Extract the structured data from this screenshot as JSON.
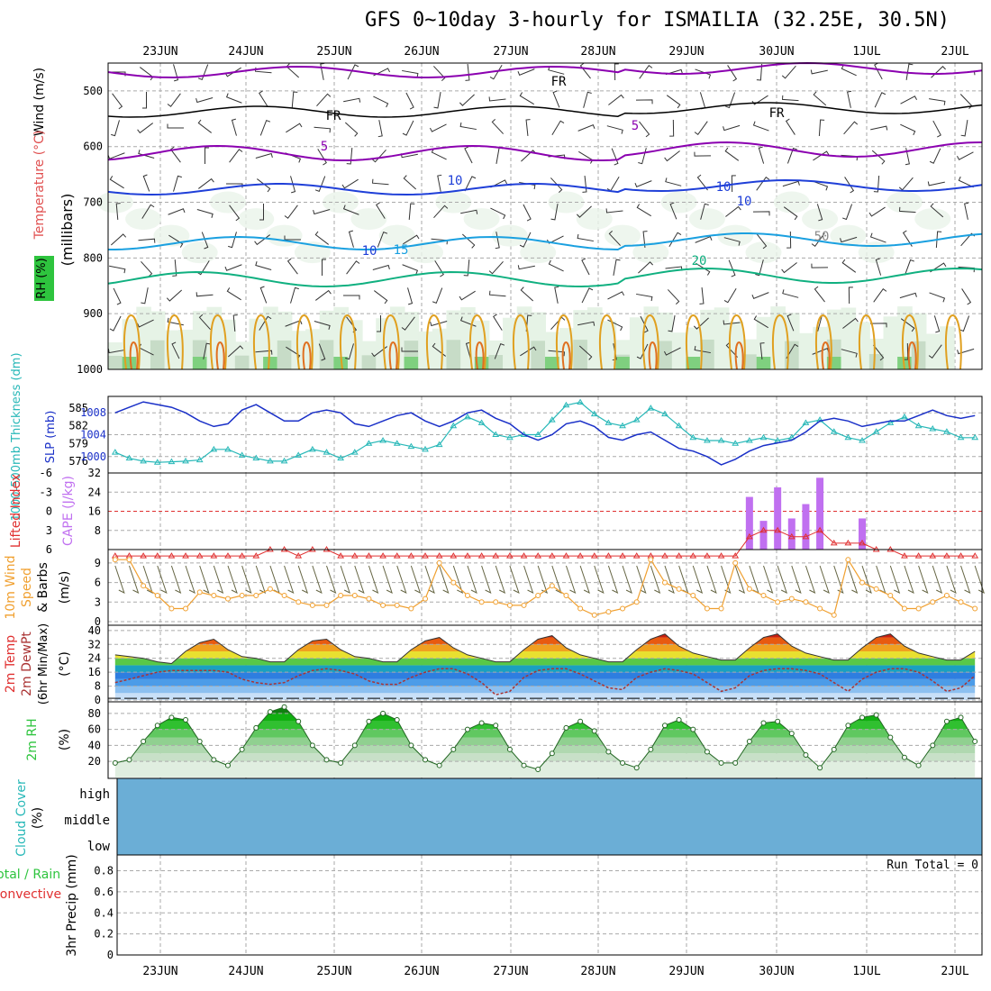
{
  "header": {
    "title": "GFS 0~10day 3-hourly for ISMAILIA (32.25E, 30.5N)"
  },
  "dates": [
    "23JUN",
    "24JUN",
    "25JUN",
    "26JUN",
    "27JUN",
    "28JUN",
    "29JUN",
    "30JUN",
    "1JUL",
    "2JUL"
  ],
  "colors": {
    "purple": "#8b00b0",
    "blue": "#1f3fd8",
    "lightblue": "#1aa0e0",
    "green": "#10b080",
    "orange": "#e0a020",
    "rh": "#2ec43e",
    "cyan": "#28b8b8",
    "slp": "#1a30c8",
    "cape": "#c070f0",
    "li": "#e03030",
    "wind": "#f0a030",
    "cloud": "#6baed6"
  },
  "panels": {
    "upper": {
      "ylabel_wind": "Wind (m/s)",
      "ylabel_temp": "Temperature (°C)",
      "ylabel_mb": "(millibars)",
      "ylabel_rh": "RH (%)",
      "yticks": [
        "500",
        "600",
        "700",
        "800",
        "900",
        "1000"
      ],
      "contour_labels": [
        "FR",
        "FR",
        "FR",
        "5",
        "5",
        "10",
        "10",
        "15",
        "20",
        "10",
        "10",
        "50"
      ]
    },
    "thickness": {
      "ylabel_thick": "1000-500mb Thickness (dm)",
      "ylabel_slp": "SLP (mb)",
      "thick_ticks": [
        "585",
        "582",
        "579",
        "576"
      ],
      "slp_ticks": [
        "1008",
        "1004",
        "1000"
      ]
    },
    "cape": {
      "ylabel_li": "Lifted Index",
      "ylabel_cape": "CAPE (J/kg)",
      "li_ticks": [
        "-6",
        "-3",
        "0",
        "3",
        "6"
      ],
      "cape_ticks": [
        "32",
        "24",
        "16",
        "8"
      ]
    },
    "wind10": {
      "ylabel1": "10m Wind",
      "ylabel2": "Speed",
      "ylabel3": "& Barbs",
      "units": "(m/s)",
      "ticks": [
        "9",
        "6",
        "3",
        "0"
      ]
    },
    "temp2m": {
      "ylabel1": "2m Temp",
      "ylabel2": "2m DewPt",
      "ylabel3": "(6hr Min/Max)",
      "units": "(°C)",
      "ticks": [
        "40",
        "32",
        "24",
        "16",
        "8",
        "0"
      ]
    },
    "rh2m": {
      "ylabel": "2m RH",
      "units": "(%)",
      "ticks": [
        "80",
        "60",
        "40",
        "20"
      ]
    },
    "cloud": {
      "ylabel": "Cloud Cover",
      "units": "(%)",
      "levels": [
        "high",
        "middle",
        "low"
      ]
    },
    "precip": {
      "ylabel_total": "Total / Rain",
      "ylabel_conv": "Convective",
      "ylabel_main": "3hr Precip (mm)",
      "ticks": [
        "0.8",
        "0.6",
        "0.4",
        "0.2",
        "0"
      ],
      "run_total": "Run Total = 0"
    }
  },
  "chart_data": {
    "type": "line",
    "series": [
      {
        "name": "SLP (mb)",
        "values": [
          1008.0,
          1009.0,
          1010.0,
          1009.5,
          1009.0,
          1008.0,
          1006.5,
          1005.5,
          1006.0,
          1008.5,
          1009.5,
          1008.0,
          1006.5,
          1006.5,
          1008.0,
          1008.5,
          1008.0,
          1006.0,
          1005.5,
          1006.5,
          1007.5,
          1008.0,
          1006.5,
          1005.5,
          1006.5,
          1008.0,
          1008.5,
          1007.0,
          1006.0,
          1004.0,
          1003.0,
          1004.0,
          1006.0,
          1006.5,
          1005.5,
          1003.5,
          1003.0,
          1004.0,
          1004.5,
          1003.0,
          1001.5,
          1001.0,
          1000.0,
          998.5,
          999.5,
          1001.0,
          1002.0,
          1002.5,
          1003.0,
          1004.5,
          1006.5,
          1007.0,
          1006.5,
          1005.5,
          1006.0,
          1006.5,
          1006.5,
          1007.5,
          1008.5,
          1007.5,
          1007.0,
          1007.5
        ]
      },
      {
        "name": "1000-500mb Thickness (dm)",
        "values": [
          577.5,
          576.5,
          576.0,
          575.8,
          575.9,
          576.0,
          576.2,
          578.0,
          578.0,
          577.0,
          576.5,
          576.0,
          576.0,
          577.0,
          578.0,
          577.5,
          576.5,
          577.5,
          579.0,
          579.5,
          579.0,
          578.5,
          578.0,
          578.8,
          582.0,
          583.5,
          582.5,
          580.5,
          580.0,
          580.5,
          580.5,
          583.0,
          585.5,
          586.0,
          584.0,
          582.5,
          582.0,
          583.0,
          585.0,
          584.0,
          582.0,
          580.0,
          579.5,
          579.5,
          579.0,
          579.5,
          580.0,
          579.5,
          580.0,
          582.5,
          583.0,
          581.0,
          580.0,
          579.5,
          581.0,
          582.5,
          583.5,
          582.0,
          581.5,
          581.0,
          580.0,
          580.0
        ]
      },
      {
        "name": "CAPE (J/kg)",
        "values": [
          0,
          0,
          0,
          0,
          0,
          0,
          0,
          0,
          0,
          0,
          0,
          0,
          0,
          0,
          0,
          0,
          0,
          0,
          0,
          0,
          0,
          0,
          0,
          0,
          0,
          0,
          0,
          0,
          0,
          0,
          0,
          0,
          0,
          0,
          0,
          0,
          0,
          0,
          0,
          0,
          0,
          0,
          0,
          0,
          0,
          22,
          12,
          26,
          13,
          19,
          30,
          0,
          0,
          13,
          0,
          0,
          0,
          0,
          0,
          0,
          0,
          0
        ]
      },
      {
        "name": "Lifted Index",
        "values": [
          7,
          7,
          7,
          7,
          7,
          7,
          7,
          7,
          7,
          7,
          7,
          6,
          6,
          7,
          6,
          6,
          7,
          7,
          7,
          7,
          7,
          7,
          7,
          7,
          7,
          7,
          7,
          7,
          7,
          7,
          7,
          7,
          7,
          7,
          7,
          7,
          7,
          7,
          7,
          7,
          7,
          7,
          7,
          7,
          7,
          4,
          3,
          3,
          4,
          4,
          3,
          5,
          5,
          5,
          6,
          6,
          7,
          7,
          7,
          7,
          7,
          7
        ]
      },
      {
        "name": "10m Wind Speed (m/s)",
        "values": [
          9.5,
          9.5,
          5.5,
          4,
          2,
          2,
          4.5,
          4,
          3.5,
          4,
          4,
          5,
          4,
          3,
          2.5,
          2.5,
          4,
          4,
          3.5,
          2.5,
          2.5,
          2,
          3.5,
          9,
          6,
          4,
          3,
          3,
          2.5,
          2.5,
          4,
          5.5,
          4,
          2,
          1,
          1.5,
          2,
          3,
          9.5,
          6,
          5,
          4,
          2,
          2,
          9,
          5,
          4,
          3,
          3.5,
          3,
          2,
          1,
          9.5,
          6,
          5,
          4,
          2,
          2,
          3,
          4,
          3,
          2
        ]
      },
      {
        "name": "2m Temp (°C)",
        "values": [
          26,
          25,
          24,
          22,
          21,
          28,
          33,
          35,
          29,
          25,
          24,
          22,
          22,
          29,
          34,
          35,
          29,
          25,
          24,
          22,
          22,
          29,
          34,
          36,
          30,
          26,
          24,
          22,
          22,
          29,
          35,
          37,
          30,
          26,
          24,
          22,
          22,
          29,
          35,
          38,
          31,
          27,
          25,
          23,
          23,
          30,
          36,
          38,
          31,
          27,
          25,
          23,
          23,
          30,
          36,
          38,
          31,
          27,
          25,
          23,
          23,
          28
        ]
      },
      {
        "name": "2m DewPt (°C)",
        "values": [
          10,
          12,
          14,
          16,
          17,
          17,
          17,
          17,
          16,
          12,
          10,
          9,
          10,
          14,
          17,
          18,
          17,
          15,
          11,
          9,
          9,
          13,
          16,
          18,
          18,
          15,
          10,
          3,
          5,
          13,
          17,
          18,
          18,
          15,
          11,
          7,
          6,
          13,
          16,
          18,
          17,
          15,
          10,
          5,
          7,
          14,
          17,
          18,
          18,
          17,
          15,
          10,
          5,
          12,
          16,
          18,
          18,
          16,
          11,
          5,
          7,
          14
        ]
      },
      {
        "name": "2m RH (%)",
        "values": [
          18,
          22,
          45,
          65,
          75,
          72,
          45,
          22,
          15,
          35,
          62,
          82,
          88,
          70,
          40,
          22,
          18,
          40,
          70,
          80,
          72,
          40,
          22,
          15,
          35,
          60,
          68,
          65,
          35,
          15,
          10,
          30,
          62,
          70,
          58,
          32,
          18,
          12,
          35,
          65,
          72,
          60,
          32,
          18,
          18,
          45,
          68,
          70,
          55,
          28,
          12,
          35,
          65,
          75,
          78,
          50,
          25,
          15,
          40,
          70,
          75,
          45
        ]
      }
    ]
  }
}
